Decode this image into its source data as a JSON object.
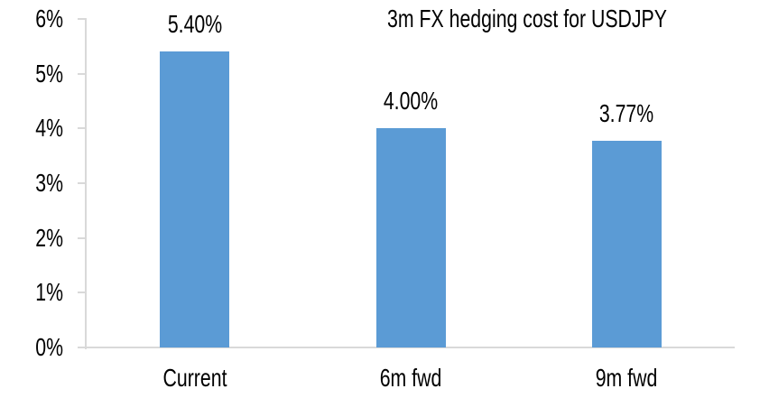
{
  "chart_data": {
    "type": "bar",
    "title": "3m FX hedging cost for USDJPY",
    "categories": [
      "Current",
      "6m fwd",
      "9m fwd"
    ],
    "values": [
      5.4,
      4.0,
      3.77
    ],
    "data_labels": [
      "5.40%",
      "4.00%",
      "3.77%"
    ],
    "y_ticks": [
      "6%",
      "5%",
      "4%",
      "3%",
      "2%",
      "1%",
      "0%"
    ],
    "ylim": [
      0,
      6
    ],
    "y_step": 1,
    "xlabel": "",
    "ylabel": "",
    "grid": false,
    "legend_position": "none",
    "colors": {
      "bar": "#5B9BD5",
      "axis": "#D9D9D9",
      "text": "#000000",
      "background": "#FFFFFF"
    }
  }
}
